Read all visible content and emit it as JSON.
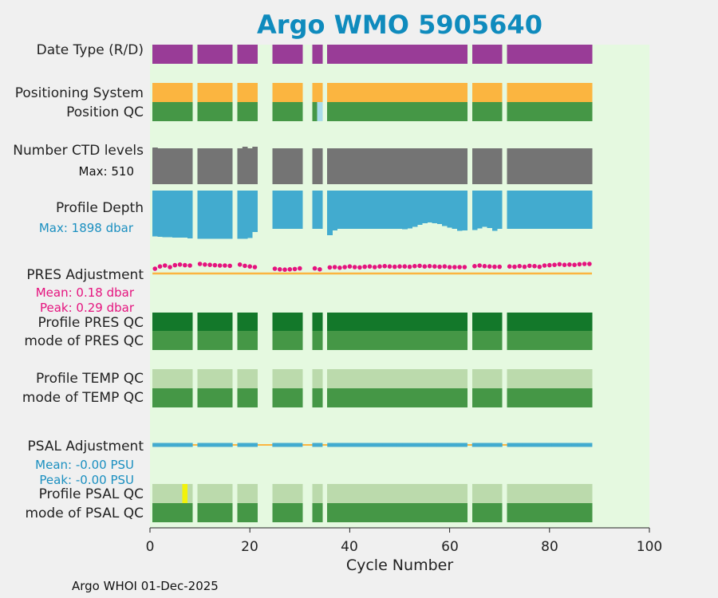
{
  "chart_data": {
    "type": "status-timeline",
    "title": "Argo WMO 5905640",
    "xlabel": "Cycle Number",
    "xlim": [
      0,
      100
    ],
    "xticks": [
      0,
      20,
      40,
      60,
      80,
      100
    ],
    "cycles_present": [
      1,
      2,
      3,
      4,
      5,
      6,
      7,
      8,
      10,
      11,
      12,
      13,
      14,
      15,
      16,
      18,
      19,
      20,
      21,
      25,
      26,
      27,
      28,
      29,
      30,
      33,
      34,
      36,
      37,
      38,
      39,
      40,
      41,
      42,
      43,
      44,
      45,
      46,
      47,
      48,
      49,
      50,
      51,
      52,
      53,
      54,
      55,
      56,
      57,
      58,
      59,
      60,
      61,
      62,
      63,
      65,
      66,
      67,
      68,
      69,
      70,
      72,
      73,
      74,
      75,
      76,
      77,
      78,
      79,
      80,
      81,
      82,
      83,
      84,
      85,
      86,
      87,
      88
    ],
    "rows": [
      {
        "label": "Date Type (R/D)",
        "color": "#993c97"
      },
      {
        "label": "Positioning System",
        "color": "#fbb540"
      },
      {
        "label": "Position QC",
        "color": "#459746",
        "exceptions": [
          {
            "cycle": 34,
            "color": "#a9dbe9"
          }
        ]
      },
      {
        "label": "Number CTD levels",
        "color": "#747474",
        "sub_label": "Max: 510"
      },
      {
        "label": "Profile Depth",
        "color": "#42abcf",
        "sub_label": "Max: 1898 dbar"
      },
      {
        "label": "PRES Adjustment",
        "sub_label_1": "Mean: 0.18 dbar",
        "sub_label_2": "Peak: 0.29 dbar"
      },
      {
        "label": "Profile PRES QC",
        "color": "#13782a"
      },
      {
        "label": "mode of PRES QC",
        "color": "#459746"
      },
      {
        "label": "Profile TEMP QC",
        "color": "#bbdaac"
      },
      {
        "label": "mode of TEMP QC",
        "color": "#459746"
      },
      {
        "label": "PSAL Adjustment",
        "sub_label_1": "Mean: -0.00 PSU",
        "sub_label_2": "Peak: -0.00 PSU"
      },
      {
        "label": "Profile PSAL QC",
        "color": "#bbdaac",
        "exceptions": [
          {
            "cycle": 7,
            "color": "#f2f20b"
          }
        ]
      },
      {
        "label": "mode of PSAL QC",
        "color": "#459746"
      }
    ],
    "profile_depth_max_dbar": 1898,
    "pres_adjustment_dbar": {
      "mean": 0.18,
      "peak": 0.29
    },
    "psal_adjustment_psu": {
      "mean": -0.0,
      "peak": -0.0
    },
    "colors": {
      "plot_bg": "#e5f9e0",
      "pres_line": "#e5137e",
      "zero_line": "#fbb540",
      "psal_line": "#42abcf",
      "depth_label": "#1a8fc0",
      "pres_label": "#e5137e",
      "psal_label": "#1a8fc0"
    }
  },
  "footer": "Argo WHOI 01-Dec-2025"
}
